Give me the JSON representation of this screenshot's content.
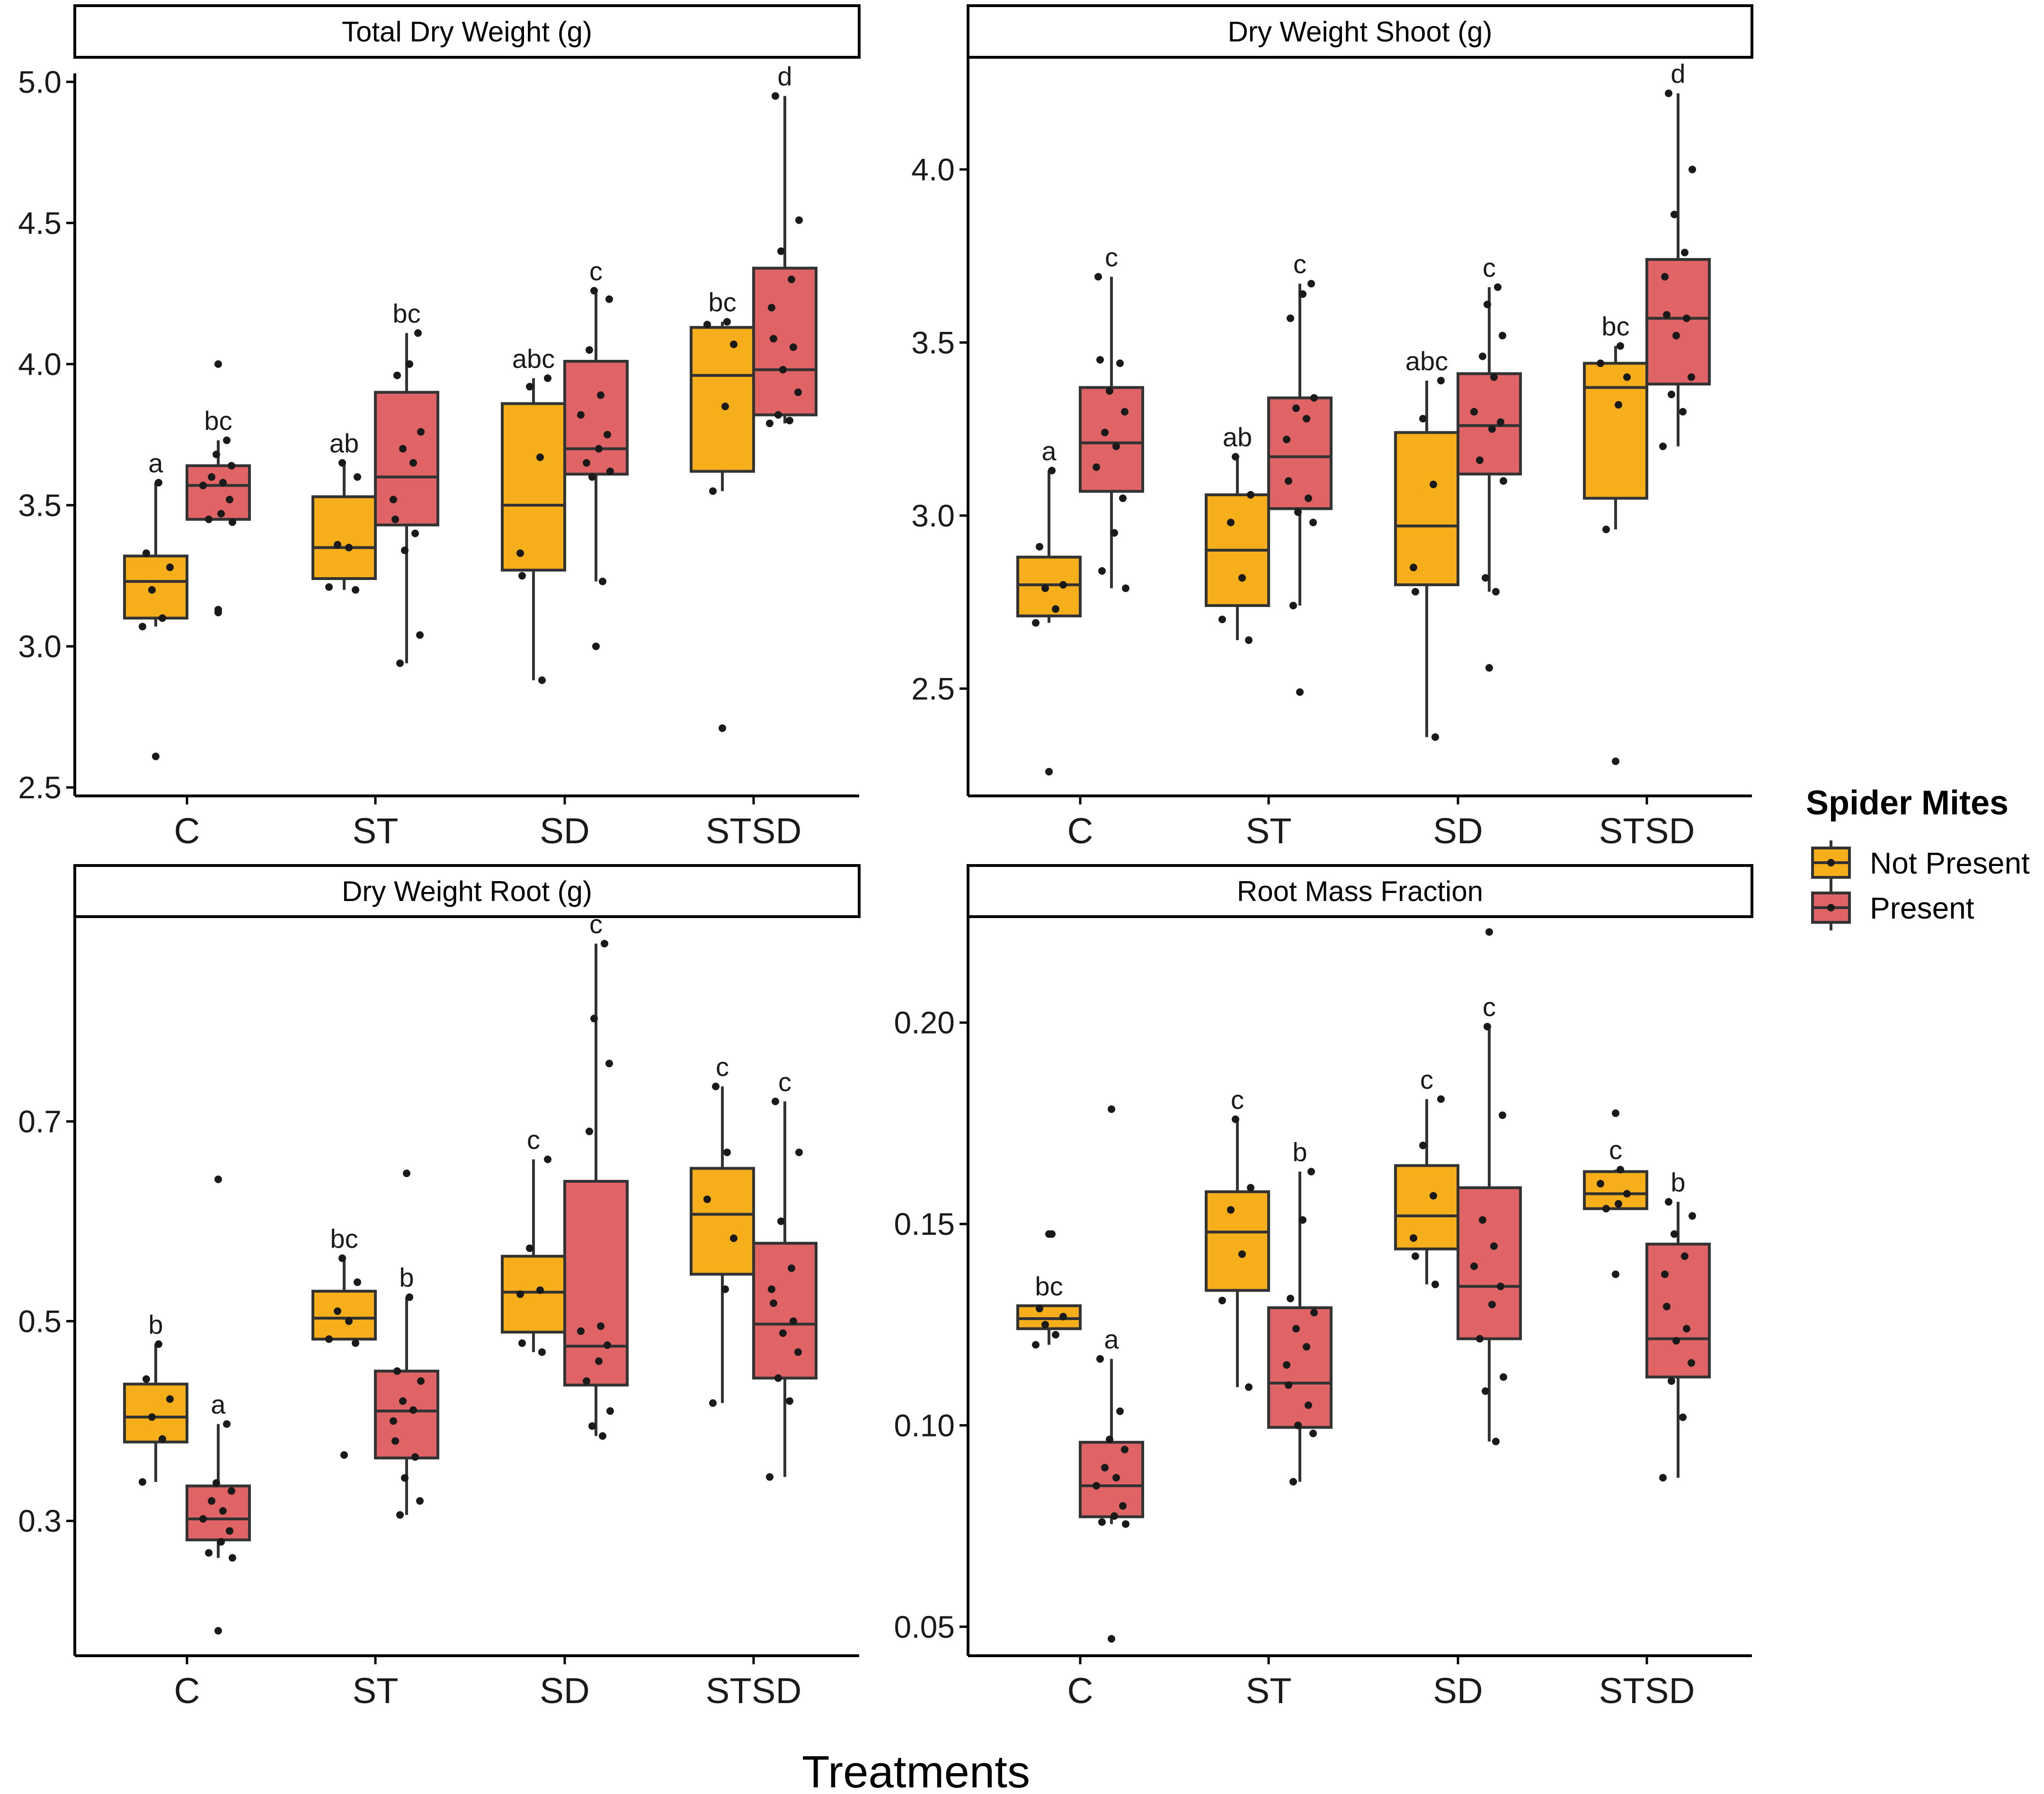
{
  "colors": {
    "not_present": "#F6AE1A",
    "present": "#E06466"
  },
  "chart_data": {
    "type": "boxplot",
    "xlabel": "Treatments",
    "categories": [
      "C",
      "ST",
      "SD",
      "STSD"
    ],
    "legend": {
      "title": "Spider Mites",
      "entries": [
        "Not Present",
        "Present"
      ],
      "placement": "right"
    },
    "panels": [
      {
        "title": "Total Dry Weight (g)",
        "ylim": [
          2.47,
          5.03
        ],
        "yticks": [
          2.5,
          3.0,
          3.5,
          4.0,
          4.5,
          5.0
        ],
        "ytick_labels": [
          "2.5",
          "3.0",
          "3.5",
          "4.0",
          "4.5",
          "5.0"
        ],
        "groups": [
          {
            "category": "C",
            "series": "Not Present",
            "q1": 3.1,
            "median": 3.23,
            "q3": 3.32,
            "whisker_low": 3.07,
            "whisker_high": 3.58,
            "letter": "a",
            "outliers": [
              2.61
            ],
            "points": [
              3.07,
              3.1,
              3.2,
              3.28,
              3.33,
              3.58
            ]
          },
          {
            "category": "C",
            "series": "Present",
            "q1": 3.45,
            "median": 3.57,
            "q3": 3.64,
            "whisker_low": 3.45,
            "whisker_high": 3.73,
            "letter": "bc",
            "outliers": [
              3.12,
              3.13,
              4.0
            ],
            "points": [
              3.44,
              3.45,
              3.47,
              3.52,
              3.57,
              3.58,
              3.6,
              3.64,
              3.68,
              3.73
            ]
          },
          {
            "category": "ST",
            "series": "Not Present",
            "q1": 3.24,
            "median": 3.35,
            "q3": 3.53,
            "whisker_low": 3.2,
            "whisker_high": 3.65,
            "letter": "ab",
            "outliers": [],
            "points": [
              3.2,
              3.21,
              3.35,
              3.36,
              3.6,
              3.65
            ]
          },
          {
            "category": "ST",
            "series": "Present",
            "q1": 3.43,
            "median": 3.6,
            "q3": 3.9,
            "whisker_low": 2.94,
            "whisker_high": 4.11,
            "letter": "bc",
            "outliers": [],
            "points": [
              2.94,
              3.04,
              3.34,
              3.4,
              3.45,
              3.52,
              3.65,
              3.7,
              3.76,
              3.96,
              4.0,
              4.11
            ]
          },
          {
            "category": "SD",
            "series": "Not Present",
            "q1": 3.27,
            "median": 3.5,
            "q3": 3.86,
            "whisker_low": 2.88,
            "whisker_high": 3.95,
            "letter": "abc",
            "outliers": [],
            "points": [
              2.88,
              3.25,
              3.33,
              3.67,
              3.92,
              3.95
            ]
          },
          {
            "category": "SD",
            "series": "Present",
            "q1": 3.61,
            "median": 3.7,
            "q3": 4.01,
            "whisker_low": 3.23,
            "whisker_high": 4.26,
            "letter": "c",
            "outliers": [
              3.0
            ],
            "points": [
              3.23,
              3.6,
              3.62,
              3.65,
              3.7,
              3.75,
              3.82,
              3.89,
              4.05,
              4.23,
              4.26
            ]
          },
          {
            "category": "STSD",
            "series": "Not Present",
            "q1": 3.62,
            "median": 3.96,
            "q3": 4.13,
            "whisker_low": 3.55,
            "whisker_high": 4.15,
            "letter": "bc",
            "outliers": [
              2.71
            ],
            "points": [
              3.55,
              3.85,
              4.07,
              4.14,
              4.15
            ]
          },
          {
            "category": "STSD",
            "series": "Present",
            "q1": 3.82,
            "median": 3.98,
            "q3": 4.34,
            "whisker_low": 3.79,
            "whisker_high": 4.95,
            "letter": "d",
            "outliers": [],
            "points": [
              3.79,
              3.8,
              3.82,
              3.9,
              3.98,
              4.06,
              4.09,
              4.2,
              4.3,
              4.4,
              4.51,
              4.95
            ]
          }
        ]
      },
      {
        "title": "Dry Weight Shoot (g)",
        "ylim": [
          2.19,
          4.32
        ],
        "yticks": [
          2.5,
          3.0,
          3.5,
          4.0
        ],
        "ytick_labels": [
          "2.5",
          "3.0",
          "3.5",
          "4.0"
        ],
        "groups": [
          {
            "category": "C",
            "series": "Not Present",
            "q1": 2.71,
            "median": 2.8,
            "q3": 2.88,
            "whisker_low": 2.69,
            "whisker_high": 3.13,
            "letter": "a",
            "outliers": [
              2.26
            ],
            "points": [
              2.69,
              2.73,
              2.79,
              2.8,
              2.91,
              3.13
            ]
          },
          {
            "category": "C",
            "series": "Present",
            "q1": 3.07,
            "median": 3.21,
            "q3": 3.37,
            "whisker_low": 2.79,
            "whisker_high": 3.69,
            "letter": "c",
            "outliers": [],
            "points": [
              2.79,
              2.84,
              2.95,
              3.05,
              3.14,
              3.2,
              3.24,
              3.3,
              3.36,
              3.44,
              3.45,
              3.69
            ]
          },
          {
            "category": "ST",
            "series": "Not Present",
            "q1": 2.74,
            "median": 2.9,
            "q3": 3.06,
            "whisker_low": 2.64,
            "whisker_high": 3.17,
            "letter": "ab",
            "outliers": [],
            "points": [
              2.64,
              2.7,
              2.82,
              2.98,
              3.06,
              3.17
            ]
          },
          {
            "category": "ST",
            "series": "Present",
            "q1": 3.02,
            "median": 3.17,
            "q3": 3.34,
            "whisker_low": 2.74,
            "whisker_high": 3.67,
            "letter": "c",
            "outliers": [
              2.49
            ],
            "points": [
              2.74,
              2.98,
              3.01,
              3.05,
              3.1,
              3.22,
              3.28,
              3.31,
              3.34,
              3.57,
              3.64,
              3.67
            ]
          },
          {
            "category": "SD",
            "series": "Not Present",
            "q1": 2.8,
            "median": 2.97,
            "q3": 3.24,
            "whisker_low": 2.36,
            "whisker_high": 3.39,
            "letter": "abc",
            "outliers": [],
            "points": [
              2.36,
              2.78,
              2.85,
              3.09,
              3.28,
              3.39
            ]
          },
          {
            "category": "SD",
            "series": "Present",
            "q1": 3.12,
            "median": 3.26,
            "q3": 3.41,
            "whisker_low": 2.78,
            "whisker_high": 3.66,
            "letter": "c",
            "outliers": [
              2.56
            ],
            "points": [
              2.78,
              2.82,
              3.1,
              3.16,
              3.25,
              3.27,
              3.3,
              3.4,
              3.46,
              3.52,
              3.61,
              3.66
            ]
          },
          {
            "category": "STSD",
            "series": "Not Present",
            "q1": 3.05,
            "median": 3.37,
            "q3": 3.44,
            "whisker_low": 2.96,
            "whisker_high": 3.49,
            "letter": "bc",
            "outliers": [
              2.29
            ],
            "points": [
              2.96,
              3.32,
              3.4,
              3.44,
              3.49
            ]
          },
          {
            "category": "STSD",
            "series": "Present",
            "q1": 3.38,
            "median": 3.57,
            "q3": 3.74,
            "whisker_low": 3.2,
            "whisker_high": 4.22,
            "letter": "d",
            "outliers": [],
            "points": [
              3.2,
              3.3,
              3.35,
              3.4,
              3.52,
              3.57,
              3.58,
              3.69,
              3.76,
              3.87,
              4.0,
              4.22
            ]
          }
        ]
      },
      {
        "title": "Dry Weight Root (g)",
        "ylim": [
          0.165,
          0.905
        ],
        "yticks": [
          0.3,
          0.5,
          0.7
        ],
        "ytick_labels": [
          "0.3",
          "0.5",
          "0.7"
        ],
        "groups": [
          {
            "category": "C",
            "series": "Not Present",
            "q1": 0.379,
            "median": 0.404,
            "q3": 0.437,
            "whisker_low": 0.339,
            "whisker_high": 0.477,
            "letter": "b",
            "outliers": [],
            "points": [
              0.339,
              0.382,
              0.404,
              0.422,
              0.442,
              0.477
            ]
          },
          {
            "category": "C",
            "series": "Present",
            "q1": 0.281,
            "median": 0.302,
            "q3": 0.335,
            "whisker_low": 0.263,
            "whisker_high": 0.397,
            "letter": "a",
            "outliers": [
              0.19,
              0.642
            ],
            "points": [
              0.263,
              0.268,
              0.279,
              0.29,
              0.302,
              0.31,
              0.32,
              0.33,
              0.338,
              0.397
            ]
          },
          {
            "category": "ST",
            "series": "Not Present",
            "q1": 0.482,
            "median": 0.503,
            "q3": 0.53,
            "whisker_low": 0.482,
            "whisker_high": 0.563,
            "letter": "bc",
            "outliers": [
              0.366
            ],
            "points": [
              0.478,
              0.482,
              0.5,
              0.51,
              0.539,
              0.563
            ]
          },
          {
            "category": "ST",
            "series": "Present",
            "q1": 0.363,
            "median": 0.41,
            "q3": 0.45,
            "whisker_low": 0.306,
            "whisker_high": 0.524,
            "letter": "b",
            "outliers": [
              0.648
            ],
            "points": [
              0.306,
              0.32,
              0.343,
              0.364,
              0.38,
              0.4,
              0.411,
              0.42,
              0.44,
              0.45,
              0.524
            ]
          },
          {
            "category": "SD",
            "series": "Not Present",
            "q1": 0.489,
            "median": 0.529,
            "q3": 0.565,
            "whisker_low": 0.469,
            "whisker_high": 0.662,
            "letter": "c",
            "outliers": [],
            "points": [
              0.469,
              0.478,
              0.527,
              0.531,
              0.573,
              0.662
            ]
          },
          {
            "category": "SD",
            "series": "Present",
            "q1": 0.436,
            "median": 0.475,
            "q3": 0.64,
            "whisker_low": 0.385,
            "whisker_high": 0.878,
            "letter": "c",
            "outliers": [],
            "points": [
              0.385,
              0.395,
              0.41,
              0.44,
              0.46,
              0.476,
              0.49,
              0.495,
              0.69,
              0.758,
              0.803,
              0.878
            ]
          },
          {
            "category": "STSD",
            "series": "Not Present",
            "q1": 0.547,
            "median": 0.607,
            "q3": 0.653,
            "whisker_low": 0.418,
            "whisker_high": 0.735,
            "letter": "c",
            "outliers": [],
            "points": [
              0.418,
              0.532,
              0.583,
              0.622,
              0.669,
              0.735
            ]
          },
          {
            "category": "STSD",
            "series": "Present",
            "q1": 0.443,
            "median": 0.497,
            "q3": 0.578,
            "whisker_low": 0.344,
            "whisker_high": 0.72,
            "letter": "c",
            "outliers": [],
            "points": [
              0.344,
              0.42,
              0.443,
              0.469,
              0.488,
              0.5,
              0.518,
              0.532,
              0.553,
              0.6,
              0.669,
              0.72
            ]
          }
        ]
      },
      {
        "title": "Root Mass Fraction",
        "ylim": [
          0.0428,
          0.2263
        ],
        "yticks": [
          0.05,
          0.1,
          0.15,
          0.2
        ],
        "ytick_labels": [
          "0.05",
          "0.10",
          "0.15",
          "0.20"
        ],
        "groups": [
          {
            "category": "C",
            "series": "Not Present",
            "q1": 0.124,
            "median": 0.1265,
            "q3": 0.1297,
            "whisker_low": 0.12,
            "whisker_high": 0.1297,
            "letter": "bc",
            "outliers": [
              0.1475
            ],
            "points": [
              0.12,
              0.1225,
              0.125,
              0.127,
              0.129,
              0.1475
            ]
          },
          {
            "category": "C",
            "series": "Present",
            "q1": 0.0773,
            "median": 0.085,
            "q3": 0.0958,
            "whisker_low": 0.0755,
            "whisker_high": 0.1165,
            "letter": "a",
            "outliers": [
              0.047,
              0.1785
            ],
            "points": [
              0.0755,
              0.076,
              0.0775,
              0.08,
              0.085,
              0.087,
              0.0895,
              0.094,
              0.0965,
              0.1035,
              0.1165
            ]
          },
          {
            "category": "ST",
            "series": "Not Present",
            "q1": 0.1335,
            "median": 0.148,
            "q3": 0.158,
            "whisker_low": 0.1095,
            "whisker_high": 0.176,
            "letter": "c",
            "outliers": [],
            "points": [
              0.1095,
              0.131,
              0.1425,
              0.1535,
              0.159,
              0.176
            ]
          },
          {
            "category": "ST",
            "series": "Present",
            "q1": 0.0995,
            "median": 0.1105,
            "q3": 0.1292,
            "whisker_low": 0.086,
            "whisker_high": 0.163,
            "letter": "b",
            "outliers": [],
            "points": [
              0.086,
              0.098,
              0.1,
              0.105,
              0.11,
              0.115,
              0.1195,
              0.124,
              0.128,
              0.1315,
              0.151,
              0.163
            ]
          },
          {
            "category": "SD",
            "series": "Not Present",
            "q1": 0.1438,
            "median": 0.152,
            "q3": 0.1645,
            "whisker_low": 0.135,
            "whisker_high": 0.181,
            "letter": "c",
            "outliers": [],
            "points": [
              0.135,
              0.142,
              0.1465,
              0.157,
              0.1695,
              0.181
            ]
          },
          {
            "category": "SD",
            "series": "Present",
            "q1": 0.1215,
            "median": 0.1345,
            "q3": 0.159,
            "whisker_low": 0.096,
            "whisker_high": 0.199,
            "letter": "c",
            "outliers": [
              0.2225
            ],
            "points": [
              0.096,
              0.1085,
              0.112,
              0.1215,
              0.13,
              0.1345,
              0.1395,
              0.1445,
              0.151,
              0.177,
              0.199
            ]
          },
          {
            "category": "STSD",
            "series": "Not Present",
            "q1": 0.1538,
            "median": 0.1575,
            "q3": 0.163,
            "whisker_low": 0.1538,
            "whisker_high": 0.1635,
            "letter": "c",
            "outliers": [
              0.1375,
              0.1775
            ],
            "points": [
              0.1538,
              0.155,
              0.1575,
              0.16,
              0.1635
            ]
          },
          {
            "category": "STSD",
            "series": "Present",
            "q1": 0.112,
            "median": 0.1215,
            "q3": 0.145,
            "whisker_low": 0.087,
            "whisker_high": 0.1555,
            "letter": "b",
            "outliers": [],
            "points": [
              0.087,
              0.102,
              0.111,
              0.1155,
              0.121,
              0.124,
              0.1295,
              0.1375,
              0.142,
              0.1475,
              0.152,
              0.1555
            ]
          }
        ]
      }
    ]
  }
}
